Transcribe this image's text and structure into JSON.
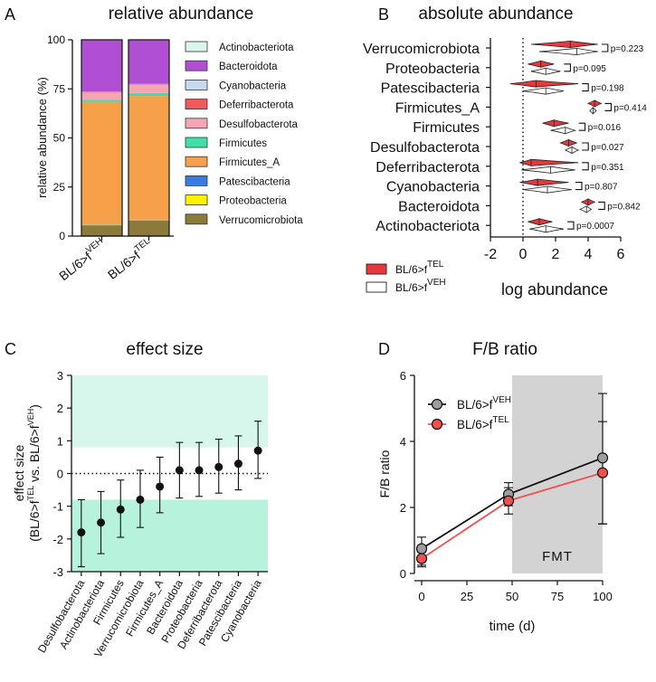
{
  "colors": {
    "Actinobacteriota": "#d9f5ee",
    "Bacteroidota": "#b04fd3",
    "Cyanobacteria": "#c6d9f1",
    "Deferribacterota": "#f05a5a",
    "Desulfobacterota": "#f6a6b2",
    "Firmicutes": "#3fe0a8",
    "Firmicutes_A": "#f7a04a",
    "Patescibacteria": "#3a7be0",
    "Proteobacteria": "#fff200",
    "Verrucomicrobiota": "#8c7a3a",
    "tel": "#e8383d",
    "veh": "#ffffff",
    "effect_band": "#b6f2dc",
    "effect_band_light": "#d7f7ec",
    "fmt_band": "#d3d3d3",
    "fb_veh": "#9e9e9e",
    "fb_tel": "#f05050"
  },
  "chart_data": [
    {
      "panel": "A",
      "type": "bar",
      "stacked": true,
      "title": "relative abundance",
      "ylabel": "relative abundance (%)",
      "ylim": [
        0,
        100
      ],
      "yticks": [
        "0",
        "25",
        "50",
        "75",
        "100"
      ],
      "cat_base": "BL/6>f",
      "cat_sups": [
        "VEH",
        "TEL"
      ],
      "categories": [
        "BL/6>fVEH",
        "BL/6>fTEL"
      ],
      "series": [
        {
          "name": "Verrucomicrobiota",
          "values": [
            5.5,
            8
          ]
        },
        {
          "name": "Proteobacteria",
          "values": [
            0.2,
            0.2
          ]
        },
        {
          "name": "Patescibacteria",
          "values": [
            0.2,
            0.2
          ]
        },
        {
          "name": "Firmicutes_A",
          "values": [
            62.5,
            63
          ]
        },
        {
          "name": "Firmicutes",
          "values": [
            1,
            1.5
          ]
        },
        {
          "name": "Desulfobacterota",
          "values": [
            3.5,
            4
          ]
        },
        {
          "name": "Deferribacterota",
          "values": [
            0.3,
            0.3
          ]
        },
        {
          "name": "Cyanobacteria",
          "values": [
            0.3,
            0.3
          ]
        },
        {
          "name": "Bacteroidota",
          "values": [
            26.3,
            22.3
          ]
        },
        {
          "name": "Actinobacteriota",
          "values": [
            0.2,
            0.2
          ]
        }
      ],
      "legend": [
        "Actinobacteriota",
        "Bacteroidota",
        "Cyanobacteria",
        "Deferribacterota",
        "Desulfobacterota",
        "Firmicutes",
        "Firmicutes_A",
        "Patescibacteria",
        "Proteobacteria",
        "Verrucomicrobiota"
      ]
    },
    {
      "panel": "B",
      "type": "violin",
      "title": "absolute abundance",
      "xlabel": "log abundance",
      "xlim": [
        -2,
        6
      ],
      "xticks": [
        "-2",
        "0",
        "2",
        "4",
        "6"
      ],
      "categories": [
        "Verrucomicrobiota",
        "Proteobacteria",
        "Patescibacteria",
        "Firmicutes_A",
        "Firmicutes",
        "Desulfobacterota",
        "Deferribacterota",
        "Cyanobacteria",
        "Bacteroidota",
        "Actinobacteriota"
      ],
      "series": [
        {
          "name": "BL/6>fTEL",
          "center": [
            2.9,
            1.1,
            0.8,
            4.4,
            1.9,
            2.8,
            0.5,
            0.9,
            4.0,
            1.0
          ],
          "min": [
            0.5,
            0.3,
            -0.8,
            4.0,
            1.2,
            2.3,
            -0.2,
            -0.2,
            3.6,
            0.3
          ],
          "max": [
            4.6,
            1.9,
            3.4,
            4.8,
            2.8,
            3.3,
            3.4,
            2.8,
            4.4,
            1.8
          ]
        },
        {
          "name": "BL/6>fVEH",
          "center": [
            3.3,
            1.4,
            1.4,
            4.3,
            2.6,
            3.0,
            1.7,
            1.5,
            3.9,
            1.4
          ],
          "min": [
            1.0,
            0.5,
            0.0,
            4.1,
            1.7,
            2.6,
            -0.1,
            0.0,
            3.5,
            0.4
          ],
          "max": [
            4.6,
            2.3,
            2.5,
            4.5,
            3.2,
            3.4,
            3.2,
            3.0,
            4.2,
            2.5
          ]
        }
      ],
      "p_values": [
        "p=0.223",
        "p=0.095",
        "p=0.198",
        "p=0.414",
        "p=0.016",
        "p=0.027",
        "p=0.351",
        "p=0.807",
        "p=0.842",
        "p=0.0007"
      ],
      "legend_base": "BL/6>f",
      "legend_sups": [
        "TEL",
        "VEH"
      ]
    },
    {
      "panel": "C",
      "type": "scatter",
      "title": "effect size",
      "ylabel_line1": "effect size",
      "ylabel_line2_base1": "(BL/6>f",
      "ylabel_line2_sup1": "TEL",
      "ylabel_line2_mid": " vs. BL/6>f",
      "ylabel_line2_sup2": "VEH",
      "ylabel_line2_end": ")",
      "ylim": [
        -3,
        3
      ],
      "yticks": [
        "-3",
        "-2",
        "-1",
        "0",
        "1",
        "2",
        "3"
      ],
      "categories": [
        "Desulfobacterota",
        "Actinobacteriota",
        "Firmicutes",
        "Verrucomicrobiota",
        "Firmicutes_A",
        "Bacteroidota",
        "Proteobacteria",
        "Deferribacterota",
        "Patescibacteria",
        "Cyanobacteria"
      ],
      "values": [
        -1.8,
        -1.5,
        -1.1,
        -0.8,
        -0.4,
        0.1,
        0.1,
        0.2,
        0.3,
        0.7
      ],
      "lower": [
        -2.85,
        -2.45,
        -1.95,
        -1.65,
        -1.2,
        -0.75,
        -0.7,
        -0.6,
        -0.5,
        -0.15
      ],
      "upper": [
        -0.8,
        -0.55,
        -0.2,
        0.1,
        0.5,
        0.95,
        0.95,
        1.05,
        1.15,
        1.6
      ],
      "bands": [
        [
          0.8,
          3
        ],
        [
          -3,
          -0.8
        ]
      ]
    },
    {
      "panel": "D",
      "type": "line",
      "title": "F/B ratio",
      "xlabel": "time (d)",
      "ylabel": "F/B ratio",
      "xlim": [
        0,
        100
      ],
      "ylim": [
        0,
        6
      ],
      "xticks": [
        "0",
        "25",
        "50",
        "75",
        "100"
      ],
      "yticks": [
        "0",
        "2",
        "4",
        "6"
      ],
      "x": [
        0,
        48,
        100
      ],
      "series": [
        {
          "name": "BL/6>fVEH",
          "values": [
            0.75,
            2.4,
            3.5
          ],
          "err_low": [
            0.2,
            2.05,
            1.5
          ],
          "err_high": [
            1.1,
            2.75,
            5.45
          ]
        },
        {
          "name": "BL/6>fTEL",
          "values": [
            0.45,
            2.2,
            3.05
          ],
          "err_low": [
            0.25,
            1.8,
            1.5
          ],
          "err_high": [
            0.65,
            2.6,
            4.6
          ]
        }
      ],
      "legend_base": "BL/6>f",
      "legend_sups": [
        "VEH",
        "TEL"
      ],
      "annotation": "FMT",
      "shaded_range": [
        50,
        100
      ]
    }
  ],
  "panel_letters": [
    "A",
    "B",
    "C",
    "D"
  ]
}
